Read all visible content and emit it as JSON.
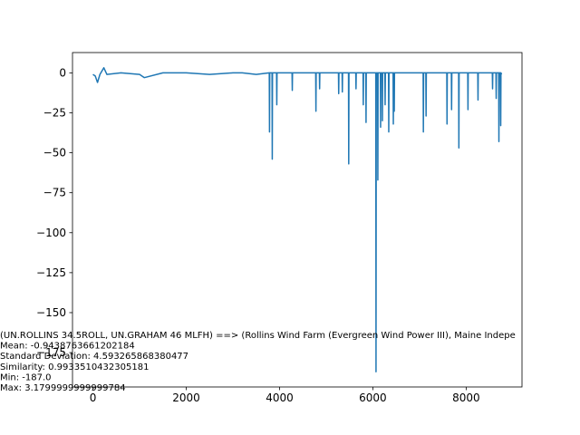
{
  "chart_data": {
    "type": "line",
    "x": [
      0,
      50,
      98,
      150,
      234,
      300,
      600,
      1000,
      1100,
      1500,
      2000,
      2500,
      3000,
      3200,
      3500,
      3780,
      3785,
      3790,
      3839,
      3844,
      3849,
      3936,
      3941,
      3946,
      4268,
      4273,
      4278,
      4775,
      4780,
      4785,
      4854,
      4859,
      4864,
      5263,
      5268,
      5273,
      5341,
      5346,
      5351,
      5478,
      5483,
      5488,
      5634,
      5639,
      5644,
      5790,
      5795,
      5800,
      5849,
      5854,
      5859,
      6063,
      6068,
      6073,
      6102,
      6107,
      6112,
      6161,
      6166,
      6171,
      6200,
      6205,
      6210,
      6258,
      6263,
      6268,
      6336,
      6341,
      6346,
      6434,
      6439,
      6444,
      6454,
      6459,
      6464,
      7078,
      7083,
      7088,
      7136,
      7141,
      7146,
      7585,
      7590,
      7595,
      7683,
      7688,
      7693,
      7839,
      7844,
      7849,
      8034,
      8039,
      8044,
      8249,
      8254,
      8259,
      8561,
      8566,
      8571,
      8639,
      8644,
      8649,
      8697,
      8702,
      8707,
      8736,
      8741,
      8746,
      8759
    ],
    "values": [
      -1,
      -2,
      -6,
      -1,
      3.18,
      -1,
      0,
      -1,
      -3,
      0,
      0,
      -1,
      0,
      0,
      -1,
      0,
      -37,
      0,
      0,
      -54,
      0,
      0,
      -20,
      0,
      0,
      -11,
      0,
      0,
      -24,
      0,
      0,
      -10,
      0,
      0,
      -13,
      0,
      0,
      -12,
      0,
      0,
      -57,
      0,
      0,
      -10,
      0,
      0,
      -20,
      0,
      0,
      -31,
      0,
      0,
      -187,
      0,
      0,
      -67,
      0,
      0,
      -34,
      0,
      0,
      -30,
      0,
      0,
      -20,
      0,
      0,
      -37,
      0,
      0,
      -32,
      0,
      0,
      -24,
      0,
      0,
      -37,
      0,
      0,
      -27,
      0,
      0,
      -32,
      0,
      0,
      -23,
      0,
      0,
      -47,
      0,
      0,
      -23,
      0,
      0,
      -17,
      0,
      0,
      -10,
      0,
      0,
      -16,
      0,
      0,
      -43,
      0,
      0,
      -33,
      0,
      -1
    ],
    "color": "#1f77b4",
    "xlim": [
      -438,
      9197
    ],
    "xticks": [
      0,
      2000,
      4000,
      6000,
      8000
    ],
    "ylim": [
      -196.5,
      12.69
    ],
    "yticks": [
      0,
      {
        "value": -25,
        "label": "−25"
      },
      {
        "value": -50,
        "label": "−50"
      },
      {
        "value": -75,
        "label": "−75"
      },
      {
        "value": -100,
        "label": "−100"
      },
      {
        "value": -125,
        "label": "−125"
      },
      {
        "value": -150,
        "label": "−150"
      },
      {
        "value": -175,
        "label": "−175"
      }
    ],
    "annotations": [
      "(UN.ROLLINS 34.5ROLL, UN.GRAHAM  46  MLFH) ==> (Rollins Wind Farm (Evergreen Wind Power III), Maine Indepe",
      "Mean: -0.9438763661202184",
      "Standard Deviation: 4.593265868380477",
      "Similarity: 0.9933510432305181",
      "Min: -187.0",
      "Max: 3.1799999999999784"
    ]
  }
}
